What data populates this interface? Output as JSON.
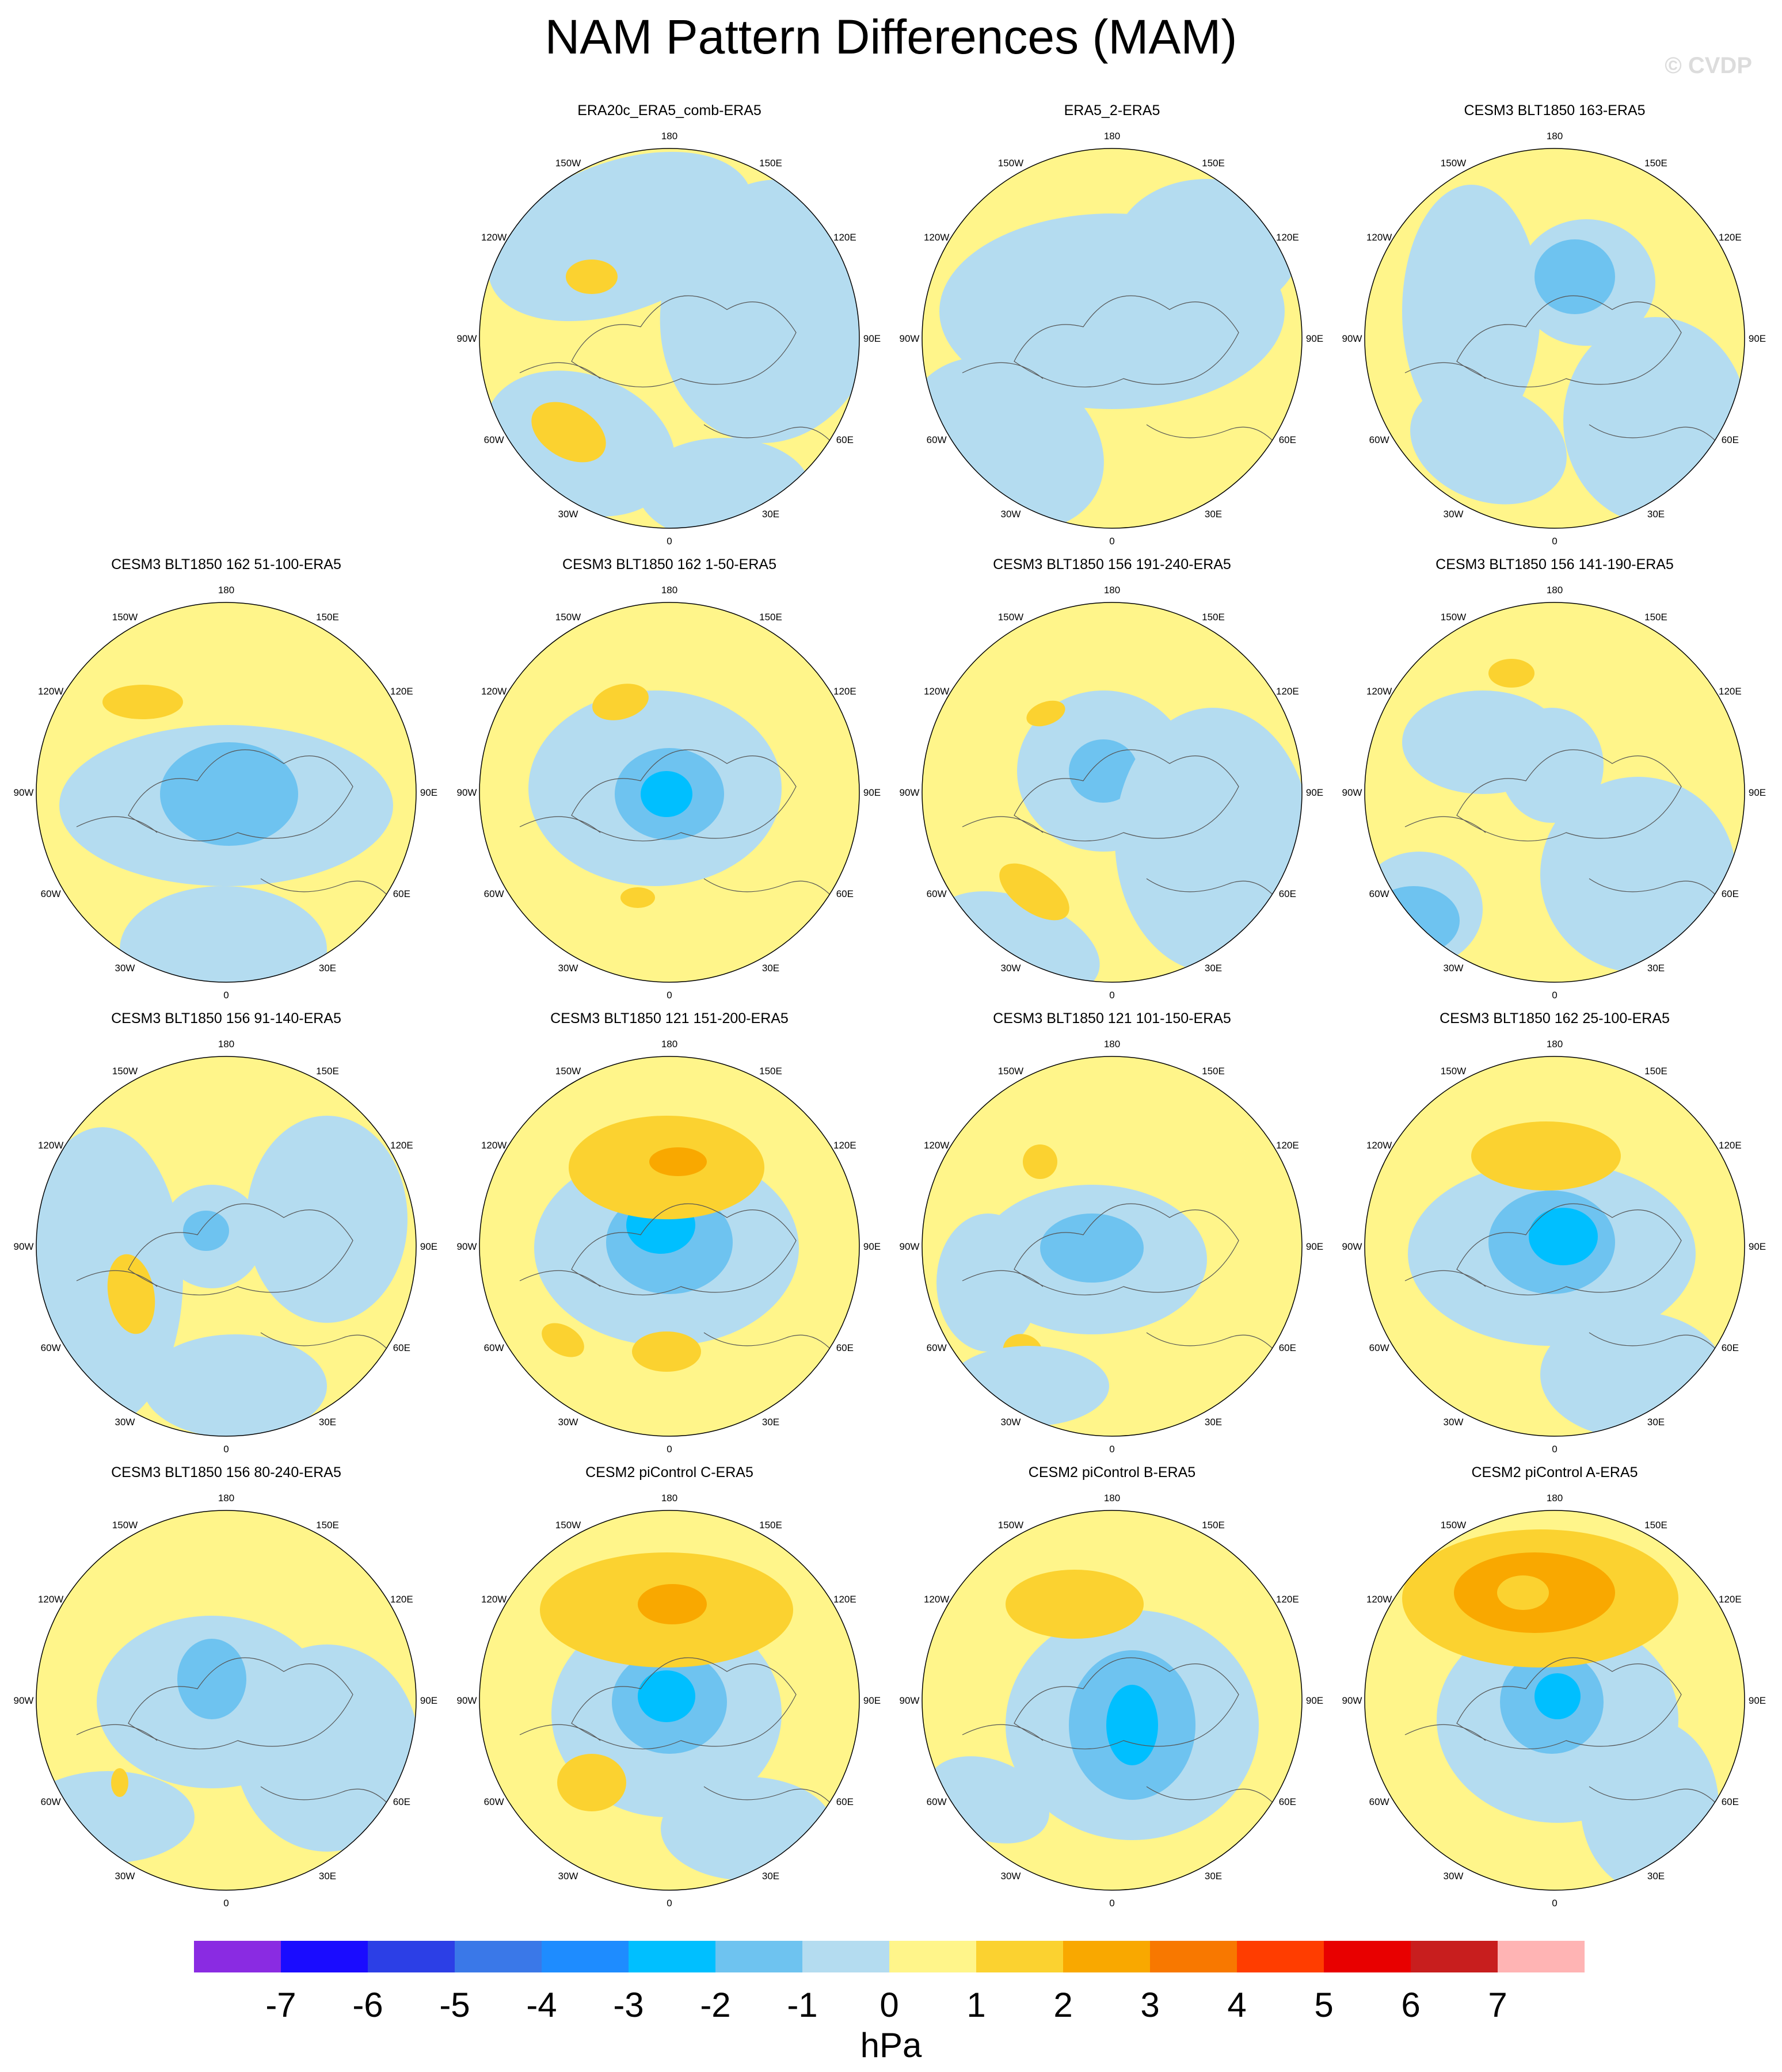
{
  "title": "NAM Pattern Differences (MAM)",
  "watermark": "© CVDP",
  "units": "hPa",
  "lon_labels": [
    "180",
    "150E",
    "120E",
    "90E",
    "60E",
    "30E",
    "0",
    "30W",
    "60W",
    "90W",
    "120W",
    "150W"
  ],
  "colorbar": {
    "levels": [
      "-7",
      "-6",
      "-5",
      "-4",
      "-3",
      "-2",
      "-1",
      "0",
      "1",
      "2",
      "3",
      "4",
      "5",
      "6",
      "7"
    ],
    "colors": [
      "#8a2be2",
      "#1a0cff",
      "#2c3fe6",
      "#3a78e8",
      "#1e8cff",
      "#00bfff",
      "#6ec3f0",
      "#b4dcf0",
      "#fff58a",
      "#fbd230",
      "#f9a800",
      "#f87800",
      "#ff3d00",
      "#e80000",
      "#c81e1e",
      "#ffb4b4"
    ]
  },
  "panels": [
    {
      "title": "ERA20c_ERA5_comb-ERA5"
    },
    {
      "title": "ERA5_2-ERA5"
    },
    {
      "title": "CESM3 BLT1850 163-ERA5"
    },
    {
      "title": "CESM3 BLT1850 162 51-100-ERA5"
    },
    {
      "title": "CESM3 BLT1850 162 1-50-ERA5"
    },
    {
      "title": "CESM3 BLT1850 156 191-240-ERA5"
    },
    {
      "title": "CESM3 BLT1850 156 141-190-ERA5"
    },
    {
      "title": "CESM3 BLT1850 156 91-140-ERA5"
    },
    {
      "title": "CESM3 BLT1850 121 151-200-ERA5"
    },
    {
      "title": "CESM3 BLT1850 121 101-150-ERA5"
    },
    {
      "title": "CESM3 BLT1850 162 25-100-ERA5"
    },
    {
      "title": "CESM3 BLT1850 156 80-240-ERA5"
    },
    {
      "title": "CESM2 piControl C-ERA5"
    },
    {
      "title": "CESM2 piControl B-ERA5"
    },
    {
      "title": "CESM2 piControl A-ERA5"
    }
  ]
}
